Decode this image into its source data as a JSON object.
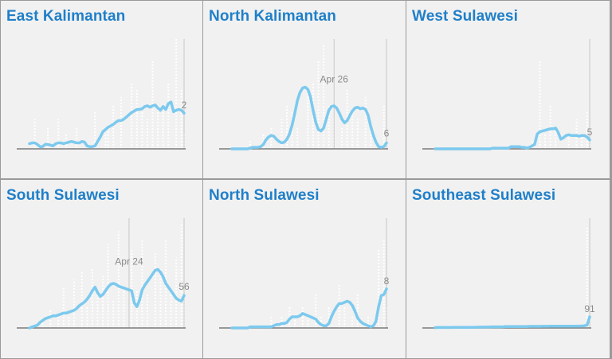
{
  "colors": {
    "title": "#1f7fc9",
    "line": "#7cc9ee",
    "bars": "#ffffff",
    "baseline": "#7a7a7a",
    "annotation": "#8a8a8a",
    "panel_bg": "#f1f1f1"
  },
  "chart_data": [
    {
      "type": "line",
      "title": "East Kalimantan",
      "ylim": [
        0,
        15
      ],
      "bars": [
        0,
        0,
        4,
        0,
        0,
        0,
        0,
        3,
        0,
        0,
        0,
        4,
        0,
        0,
        2,
        0,
        0,
        0,
        3,
        0,
        0,
        0,
        0,
        0,
        0,
        5,
        0,
        0,
        0,
        2,
        3,
        0,
        6,
        0,
        0,
        7,
        0,
        0,
        0,
        9,
        0,
        8,
        0,
        5,
        0,
        4,
        0,
        12,
        0,
        6,
        0,
        5,
        0,
        9,
        0,
        0,
        15,
        0,
        8,
        2
      ],
      "values": [
        0.7,
        0.8,
        0.8,
        0.6,
        0.3,
        0.3,
        0.6,
        0.6,
        0.5,
        0.4,
        0.7,
        0.8,
        0.8,
        0.7,
        0.8,
        0.9,
        1,
        0.9,
        0.8,
        0.8,
        1,
        0.9,
        0.4,
        0.3,
        0.3,
        0.4,
        1,
        1.6,
        2.3,
        2.6,
        2.9,
        3.1,
        3.3,
        3.6,
        3.8,
        3.8,
        4,
        4.3,
        4.6,
        4.9,
        5.1,
        5.3,
        5.3,
        5.4,
        5.7,
        5.8,
        5.6,
        5.8,
        5.9,
        5.5,
        5.2,
        5.7,
        5.3,
        6.1,
        6.3,
        5,
        5.2,
        5.3,
        5.2,
        4.8
      ],
      "annotations": [
        {
          "text": "2",
          "index": 59
        }
      ]
    },
    {
      "type": "line",
      "title": "North Kalimantan",
      "ylim": [
        0,
        15
      ],
      "bars": [
        0,
        0,
        0,
        0,
        0,
        0,
        0,
        1,
        0,
        0,
        0,
        0,
        2,
        0,
        0,
        3,
        0,
        0,
        0,
        4,
        0,
        6,
        0,
        5,
        0,
        3,
        0,
        0,
        0,
        8,
        0,
        9,
        0,
        12,
        0,
        14,
        0,
        6,
        0,
        4,
        0,
        0,
        3,
        0,
        8,
        0,
        5,
        0,
        4,
        0,
        0,
        7,
        0,
        3,
        0,
        0,
        0,
        0,
        6,
        1
      ],
      "values": [
        0,
        0,
        0,
        0,
        0,
        0,
        0,
        0.1,
        0.2,
        0.2,
        0.2,
        0.3,
        0.6,
        1.2,
        1.6,
        1.8,
        1.7,
        1.3,
        1,
        0.8,
        0.9,
        1.3,
        2,
        3.2,
        4.8,
        6.5,
        7.6,
        8.2,
        8.3,
        8,
        7,
        5.2,
        3.6,
        2.6,
        2.4,
        2.8,
        4,
        5.2,
        5.7,
        5.8,
        5.5,
        4.8,
        4,
        3.5,
        3.8,
        4.5,
        5.1,
        5.5,
        5.6,
        5.4,
        5.5,
        5.3,
        4.5,
        3,
        1.8,
        0.9,
        0.3,
        0.2,
        0.3,
        0.8
      ],
      "annotations": [
        {
          "text": "Apr 26",
          "index": 39
        },
        {
          "text": "6",
          "index": 59
        }
      ]
    },
    {
      "type": "line",
      "title": "West Sulawesi",
      "ylim": [
        0,
        15
      ],
      "bars": [
        0,
        0,
        0,
        0,
        0,
        0,
        0,
        0,
        0,
        0,
        0,
        0,
        0,
        0,
        0,
        0,
        0,
        0,
        0,
        0,
        0,
        0,
        0,
        0,
        0,
        0,
        0,
        0,
        0,
        0,
        0,
        0,
        0,
        0,
        0,
        0,
        0,
        1,
        0,
        0,
        12,
        0,
        2,
        0,
        6,
        0,
        3,
        0,
        0,
        0,
        0,
        2,
        0,
        0,
        4,
        0,
        2,
        0,
        5,
        1
      ],
      "values": [
        0,
        0,
        0,
        0,
        0,
        0,
        0,
        0,
        0,
        0,
        0,
        0,
        0,
        0,
        0,
        0,
        0,
        0,
        0,
        0,
        0,
        0,
        0.1,
        0.1,
        0.1,
        0.1,
        0.1,
        0.1,
        0.1,
        0.3,
        0.3,
        0.3,
        0.3,
        0.2,
        0.2,
        0.1,
        0.2,
        0.4,
        0.6,
        2,
        2.3,
        2.4,
        2.5,
        2.6,
        2.7,
        2.7,
        2.8,
        2.2,
        1.3,
        1.5,
        1.8,
        1.9,
        1.8,
        1.8,
        1.8,
        1.7,
        1.8,
        1.8,
        1.6,
        1.2
      ],
      "annotations": [
        {
          "text": "5",
          "index": 59
        }
      ]
    },
    {
      "type": "line",
      "title": "South Sulawesi",
      "ylim": [
        0,
        60
      ],
      "bars": [
        0,
        0,
        0,
        0,
        0,
        5,
        0,
        0,
        10,
        0,
        0,
        8,
        0,
        22,
        0,
        6,
        0,
        26,
        0,
        0,
        30,
        0,
        12,
        0,
        32,
        0,
        18,
        0,
        28,
        0,
        45,
        0,
        15,
        0,
        52,
        0,
        22,
        0,
        0,
        42,
        0,
        20,
        0,
        48,
        0,
        18,
        0,
        0,
        40,
        0,
        32,
        0,
        48,
        0,
        20,
        0,
        38,
        0,
        56,
        18
      ],
      "values": [
        0,
        0.5,
        1,
        1.5,
        3,
        4,
        5,
        5.5,
        6,
        6.5,
        6.5,
        7,
        7.5,
        8,
        8,
        8.5,
        9,
        9.5,
        10.5,
        12,
        13,
        14,
        15.5,
        17.5,
        20,
        22,
        19,
        17,
        18,
        20,
        22,
        23.5,
        24,
        23.5,
        22.5,
        22,
        21.5,
        21,
        20.5,
        20,
        13.5,
        11.5,
        15,
        20.5,
        23,
        25,
        27,
        29,
        31,
        31.5,
        30,
        27.5,
        24,
        22,
        20,
        18,
        16,
        15,
        14.5,
        17.5
      ],
      "annotations": [
        {
          "text": "Apr 24",
          "index": 38
        },
        {
          "text": "56",
          "index": 59
        }
      ]
    },
    {
      "type": "line",
      "title": "North Sulawesi",
      "ylim": [
        0,
        10
      ],
      "bars": [
        0,
        0,
        0,
        0,
        0,
        0,
        0,
        0,
        0,
        0,
        0,
        0,
        0,
        0,
        0,
        1,
        0,
        0,
        0,
        1,
        0,
        0,
        2,
        0,
        1,
        0,
        0,
        2,
        0,
        1,
        0,
        0,
        3,
        0,
        1,
        0,
        0,
        2,
        0,
        0,
        0,
        4,
        0,
        2,
        0,
        0,
        1,
        0,
        3,
        0,
        0,
        0,
        1,
        0,
        0,
        0,
        7,
        0,
        8,
        2
      ],
      "values": [
        0,
        0,
        0,
        0,
        0,
        0,
        0,
        0.1,
        0.1,
        0.1,
        0.1,
        0.1,
        0.1,
        0.1,
        0.1,
        0.1,
        0.2,
        0.3,
        0.3,
        0.4,
        0.4,
        0.5,
        0.8,
        1,
        1,
        1,
        1.1,
        1.3,
        1.2,
        1.1,
        1,
        0.9,
        0.8,
        0.5,
        0.3,
        0.2,
        0.2,
        0.4,
        1,
        1.5,
        1.9,
        2.2,
        2.2,
        2.3,
        2.4,
        2.3,
        2,
        1.5,
        0.9,
        0.6,
        0.4,
        0.3,
        0.2,
        0.1,
        0.2,
        0.6,
        1.9,
        2.9,
        3,
        3.5
      ],
      "annotations": [
        {
          "text": "8",
          "index": 59
        }
      ]
    },
    {
      "type": "line",
      "title": "Southeast Sulawesi",
      "ylim": [
        0,
        100
      ],
      "bars": [
        0,
        0,
        0,
        0,
        0,
        0,
        0,
        0,
        0,
        0,
        0,
        0,
        0,
        0,
        0,
        0,
        0,
        0,
        0,
        0,
        0,
        0,
        0,
        0,
        0,
        0,
        0,
        0,
        0,
        0,
        0,
        0,
        0,
        0,
        0,
        0,
        0,
        0,
        0,
        0,
        0,
        0,
        0,
        0,
        0,
        0,
        0,
        0,
        0,
        0,
        0,
        0,
        0,
        0,
        0,
        0,
        0,
        0,
        91,
        3
      ],
      "values": [
        0.3,
        0.4,
        0.4,
        0.4,
        0.4,
        0.4,
        0.4,
        0.5,
        0.5,
        0.5,
        0.5,
        0.5,
        0.6,
        0.6,
        0.6,
        0.6,
        0.7,
        0.7,
        0.8,
        0.8,
        0.8,
        0.9,
        1,
        1,
        1,
        1,
        1.1,
        1.2,
        1.2,
        1.2,
        1.2,
        1.2,
        1.2,
        1.3,
        1.3,
        1.3,
        1.4,
        1.4,
        1.4,
        1.4,
        1.4,
        1.5,
        1.5,
        1.5,
        1.6,
        1.6,
        1.6,
        1.6,
        1.6,
        1.6,
        1.6,
        1.6,
        1.6,
        1.6,
        1.6,
        1.7,
        1.8,
        2,
        2.5,
        10
      ],
      "annotations": [
        {
          "text": "91",
          "index": 59
        }
      ]
    }
  ]
}
